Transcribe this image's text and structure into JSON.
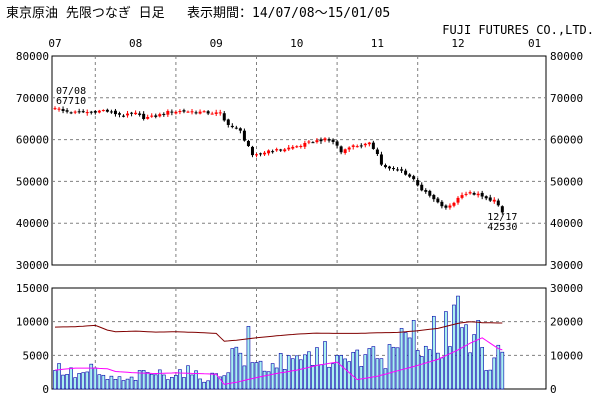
{
  "header": {
    "title": "東京原油 先限つなぎ 日足",
    "period": "表示期間：14/07/08～15/01/05",
    "company": "FUJI FUTURES CO.,LTD."
  },
  "colors": {
    "frame": "#000000",
    "grid": "#808080",
    "up_candle": "#ff0000",
    "down_candle": "#000000",
    "volume_fill": "#aaf0f0",
    "volume_outline": "#0000aa",
    "open_interest_line": "#800000",
    "moving_average_line": "#ff00ff"
  },
  "chart_data": [
    {
      "type": "candlestick",
      "month_labels": [
        "07",
        "08",
        "09",
        "10",
        "11",
        "12",
        "01"
      ],
      "month_positions_days": [
        0,
        20,
        40,
        60,
        80,
        100,
        119
      ],
      "yticks": [
        "80000",
        "70000",
        "60000",
        "50000",
        "40000",
        "30000"
      ],
      "ylim": [
        30000,
        80000
      ],
      "annotations": [
        {
          "date": "07/08",
          "value": "67710",
          "day": 0,
          "price": 67710
        },
        {
          "date": "12/17",
          "value": "42530",
          "day": 111,
          "price": 42530
        }
      ],
      "close_points": [
        [
          0,
          67710
        ],
        [
          2,
          66800
        ],
        [
          5,
          66500
        ],
        [
          9,
          66600
        ],
        [
          12,
          67000
        ],
        [
          15,
          66200
        ],
        [
          17,
          65800
        ],
        [
          20,
          66200
        ],
        [
          22,
          65200
        ],
        [
          25,
          65600
        ],
        [
          28,
          66600
        ],
        [
          31,
          66800
        ],
        [
          35,
          66700
        ],
        [
          38,
          66400
        ],
        [
          41,
          66300
        ],
        [
          42,
          64500
        ],
        [
          44,
          63000
        ],
        [
          46,
          62000
        ],
        [
          47,
          60000
        ],
        [
          48,
          58500
        ],
        [
          49,
          56000
        ],
        [
          51,
          56500
        ],
        [
          53,
          57400
        ],
        [
          56,
          57500
        ],
        [
          58,
          58000
        ],
        [
          61,
          58600
        ],
        [
          64,
          59600
        ],
        [
          67,
          60000
        ],
        [
          69,
          59500
        ],
        [
          70,
          58500
        ],
        [
          71,
          57000
        ],
        [
          73,
          58400
        ],
        [
          76,
          58600
        ],
        [
          78,
          59000
        ],
        [
          80,
          56800
        ],
        [
          81,
          54000
        ],
        [
          83,
          53000
        ],
        [
          86,
          52500
        ],
        [
          89,
          50500
        ],
        [
          91,
          48000
        ],
        [
          93,
          46500
        ],
        [
          95,
          44800
        ],
        [
          97,
          43500
        ],
        [
          99,
          45000
        ],
        [
          101,
          47000
        ],
        [
          103,
          47200
        ],
        [
          105,
          46800
        ],
        [
          107,
          45800
        ],
        [
          109,
          45500
        ],
        [
          111,
          42530
        ]
      ]
    },
    {
      "type": "bar",
      "name": "volume",
      "yticks_left": [
        "15000",
        "10000",
        "5000",
        "0"
      ],
      "ylim_left": [
        0,
        15000
      ],
      "yticks_right": [
        "30000",
        "20000",
        "10000",
        "0"
      ],
      "ylim_right": [
        0,
        30000
      ],
      "volume_points": [
        [
          0,
          3200
        ],
        [
          3,
          2500
        ],
        [
          6,
          2000
        ],
        [
          9,
          2800
        ],
        [
          12,
          1700
        ],
        [
          15,
          1500
        ],
        [
          18,
          1200
        ],
        [
          21,
          2000
        ],
        [
          24,
          2400
        ],
        [
          27,
          2100
        ],
        [
          30,
          2500
        ],
        [
          33,
          2600
        ],
        [
          36,
          1600
        ],
        [
          39,
          1800
        ],
        [
          42,
          2500
        ],
        [
          45,
          6000
        ],
        [
          48,
          4000
        ],
        [
          51,
          3500
        ],
        [
          54,
          3300
        ],
        [
          57,
          3500
        ],
        [
          60,
          3800
        ],
        [
          63,
          4600
        ],
        [
          66,
          5000
        ],
        [
          69,
          5200
        ],
        [
          72,
          3500
        ],
        [
          75,
          5000
        ],
        [
          78,
          4600
        ],
        [
          81,
          4500
        ],
        [
          84,
          5200
        ],
        [
          87,
          6000
        ],
        [
          90,
          6500
        ],
        [
          93,
          6000
        ],
        [
          96,
          7500
        ],
        [
          99,
          9000
        ],
        [
          102,
          7500
        ],
        [
          105,
          5000
        ],
        [
          108,
          3800
        ],
        [
          110,
          4000
        ],
        [
          111,
          6000
        ]
      ],
      "spikes": [
        [
          48,
          9300
        ],
        [
          56,
          5300
        ],
        [
          70,
          5000
        ],
        [
          79,
          6300
        ],
        [
          86,
          9000
        ],
        [
          89,
          10200
        ],
        [
          94,
          10800
        ],
        [
          97,
          11500
        ],
        [
          100,
          13800
        ],
        [
          105,
          10200
        ],
        [
          110,
          6500
        ]
      ],
      "open_interest": [
        [
          0,
          18400
        ],
        [
          5,
          18500
        ],
        [
          10,
          18900
        ],
        [
          13,
          17500
        ],
        [
          15,
          17000
        ],
        [
          20,
          17200
        ],
        [
          25,
          16900
        ],
        [
          30,
          17000
        ],
        [
          35,
          16800
        ],
        [
          40,
          16500
        ],
        [
          42,
          14200
        ],
        [
          45,
          14500
        ],
        [
          50,
          15200
        ],
        [
          55,
          15800
        ],
        [
          60,
          16300
        ],
        [
          65,
          16600
        ],
        [
          70,
          16500
        ],
        [
          75,
          16500
        ],
        [
          80,
          16700
        ],
        [
          85,
          16800
        ],
        [
          90,
          17300
        ],
        [
          95,
          18000
        ],
        [
          100,
          19500
        ],
        [
          103,
          20000
        ],
        [
          106,
          19700
        ],
        [
          110,
          19600
        ]
      ],
      "moving_average": [
        [
          0,
          2800
        ],
        [
          5,
          3100
        ],
        [
          10,
          3100
        ],
        [
          13,
          3000
        ],
        [
          15,
          2600
        ],
        [
          20,
          2400
        ],
        [
          25,
          2300
        ],
        [
          30,
          2400
        ],
        [
          35,
          2300
        ],
        [
          40,
          2200
        ],
        [
          42,
          700
        ],
        [
          45,
          1000
        ],
        [
          50,
          1700
        ],
        [
          55,
          2300
        ],
        [
          60,
          2800
        ],
        [
          65,
          3500
        ],
        [
          70,
          4000
        ],
        [
          75,
          1400
        ],
        [
          80,
          1900
        ],
        [
          85,
          2700
        ],
        [
          90,
          3500
        ],
        [
          95,
          4400
        ],
        [
          100,
          5800
        ],
        [
          103,
          6800
        ],
        [
          106,
          7600
        ],
        [
          110,
          6000
        ],
        [
          111,
          5800
        ]
      ]
    }
  ]
}
